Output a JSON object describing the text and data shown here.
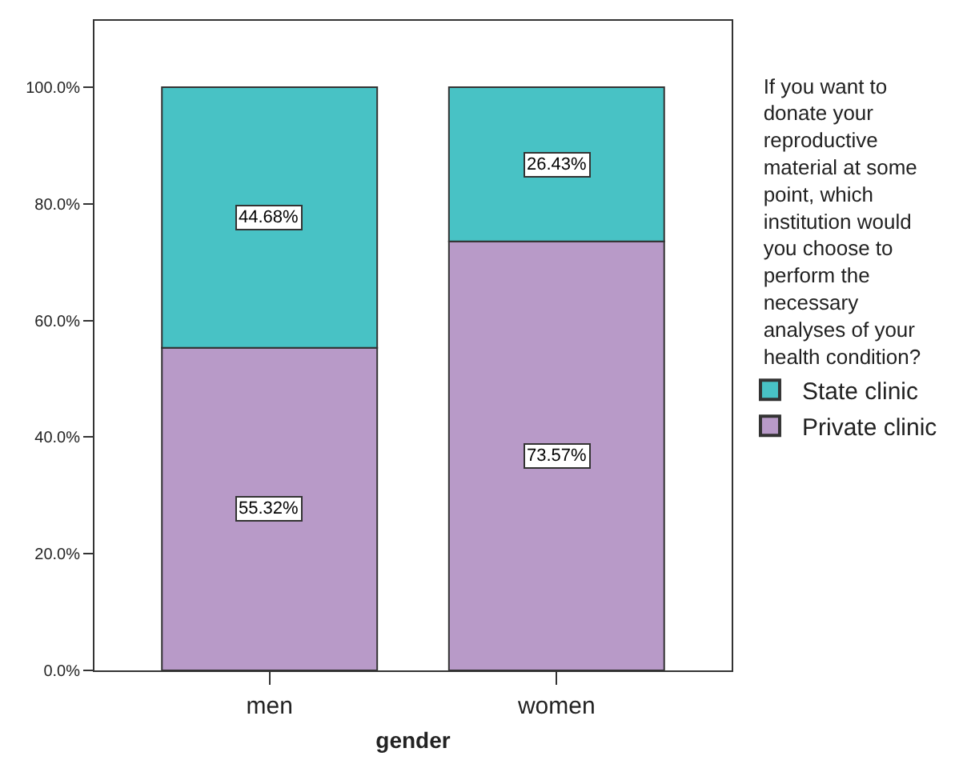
{
  "chart_data": {
    "type": "bar",
    "stacked": true,
    "xlabel": "gender",
    "categories": [
      "men",
      "women"
    ],
    "legend_title": "If you want to\ndonate your\nreproductive\nmaterial at some\npoint, which\ninstitution would\nyou choose to\nperform the\nnecessary\nanalyses of your\nhealth condition?",
    "series": [
      {
        "name": "Private clinic",
        "color": "#b89ac8",
        "values": [
          55.32,
          73.57
        ],
        "value_labels": [
          "55.32%",
          "73.57%"
        ]
      },
      {
        "name": "State clinic",
        "color": "#48c2c5",
        "values": [
          44.68,
          26.43
        ],
        "value_labels": [
          "44.68%",
          "26.43%"
        ]
      }
    ],
    "ylim": [
      0,
      111.4
    ],
    "yticks": [
      {
        "value": 0,
        "label": "0.0%"
      },
      {
        "value": 20,
        "label": "20.0%"
      },
      {
        "value": 40,
        "label": "40.0%"
      },
      {
        "value": 60,
        "label": "60.0%"
      },
      {
        "value": 80,
        "label": "80.0%"
      },
      {
        "value": 100,
        "label": "100.0%"
      }
    ],
    "legend": "right"
  }
}
